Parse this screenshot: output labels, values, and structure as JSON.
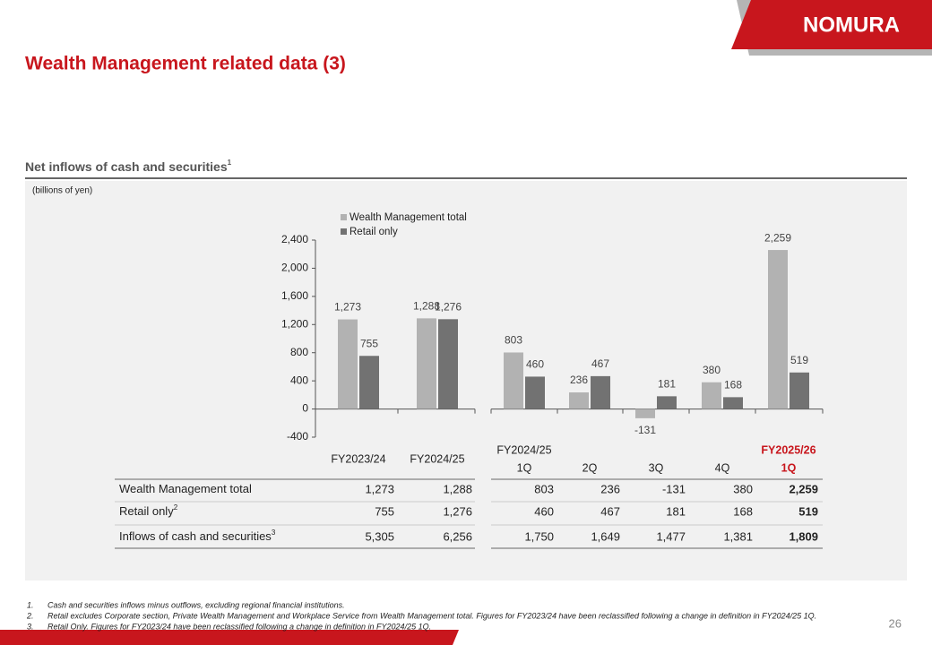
{
  "header": {
    "logo": "NOMURA",
    "title": "Wealth Management related data (3)",
    "page_number": "26"
  },
  "section": {
    "title": "Net inflows of cash and securities",
    "title_sup": "1",
    "unit_note": "(billions of yen)"
  },
  "chart_data": {
    "type": "bar",
    "categories": [
      "FY2023/24",
      "FY2024/25",
      "1Q",
      "2Q",
      "3Q",
      "4Q",
      "1Q"
    ],
    "category_groups": [
      null,
      null,
      "FY2024/25",
      null,
      null,
      null,
      "FY2025/26"
    ],
    "series": [
      {
        "name": "Wealth Management total",
        "color": "#b2b2b2",
        "values": [
          1273,
          1288,
          803,
          236,
          -131,
          380,
          2259
        ],
        "value_labels": [
          "1,273",
          "1,288",
          "803",
          "236",
          "-131",
          "380",
          "2,259"
        ]
      },
      {
        "name": "Retail only",
        "color": "#727272",
        "values": [
          755,
          1276,
          460,
          467,
          181,
          168,
          519
        ],
        "value_labels": [
          "755",
          "1,276",
          "460",
          "467",
          "181",
          "168",
          "519"
        ]
      }
    ],
    "ylim": [
      -400,
      2400
    ],
    "yticks": [
      {
        "value": -400,
        "label": "-400"
      },
      0,
      400,
      800,
      {
        "value": 1200,
        "label": "1,200"
      },
      {
        "value": 1600,
        "label": "1,600"
      },
      {
        "value": 2000,
        "label": "2,000"
      },
      {
        "value": 2400,
        "label": "2,400"
      }
    ],
    "legend": "top-left"
  },
  "table": {
    "rows": [
      {
        "label": "Wealth Management total",
        "sup": null,
        "cells": [
          "1,273",
          "1,288",
          "803",
          "236",
          "-131",
          "380",
          "2,259"
        ]
      },
      {
        "label": "Retail only",
        "sup": "2",
        "cells": [
          "755",
          "1,276",
          "460",
          "467",
          "181",
          "168",
          "519"
        ]
      },
      {
        "label": "Inflows of cash and securities",
        "sup": "3",
        "cells": [
          "5,305",
          "6,256",
          "1,750",
          "1,649",
          "1,477",
          "1,381",
          "1,809"
        ]
      }
    ]
  },
  "footnotes": [
    {
      "number": "1.",
      "text": "Cash and securities inflows minus outflows, excluding regional financial institutions."
    },
    {
      "number": "2.",
      "text": "Retail excludes Corporate section, Private Wealth Management and Workplace Service from Wealth Management total. Figures for FY2023/24 have been reclassified following a change in definition in FY2024/25 1Q."
    },
    {
      "number": "3.",
      "text": "Retail Only. Figures for FY2023/24 have been reclassified following a change in definition in FY2024/25 1Q."
    }
  ]
}
